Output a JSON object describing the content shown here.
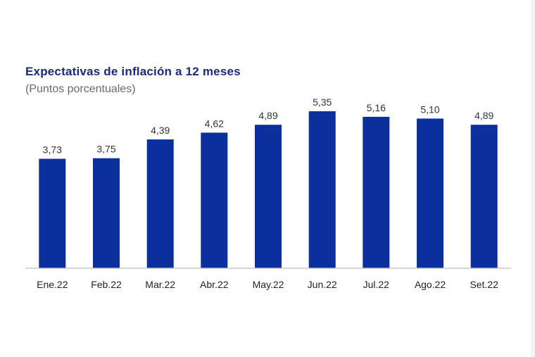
{
  "chart_data": {
    "type": "bar",
    "title": "Expectativas de inflación a 12 meses",
    "subtitle": "(Puntos porcentuales)",
    "categories": [
      "Ene.22",
      "Feb.22",
      "Mar.22",
      "Abr.22",
      "May.22",
      "Jun.22",
      "Jul.22",
      "Ago.22",
      "Set.22"
    ],
    "values": [
      3.73,
      3.75,
      4.39,
      4.62,
      4.89,
      5.35,
      5.16,
      5.1,
      4.89
    ],
    "value_labels": [
      "3,73",
      "3,75",
      "4,39",
      "4,62",
      "4,89",
      "5,35",
      "5,16",
      "5,10",
      "4,89"
    ],
    "ylim": [
      0,
      5.35
    ],
    "grid": false,
    "legend": "none",
    "bar_color": "#0b2f9c",
    "title_color": "#1a2b78"
  }
}
